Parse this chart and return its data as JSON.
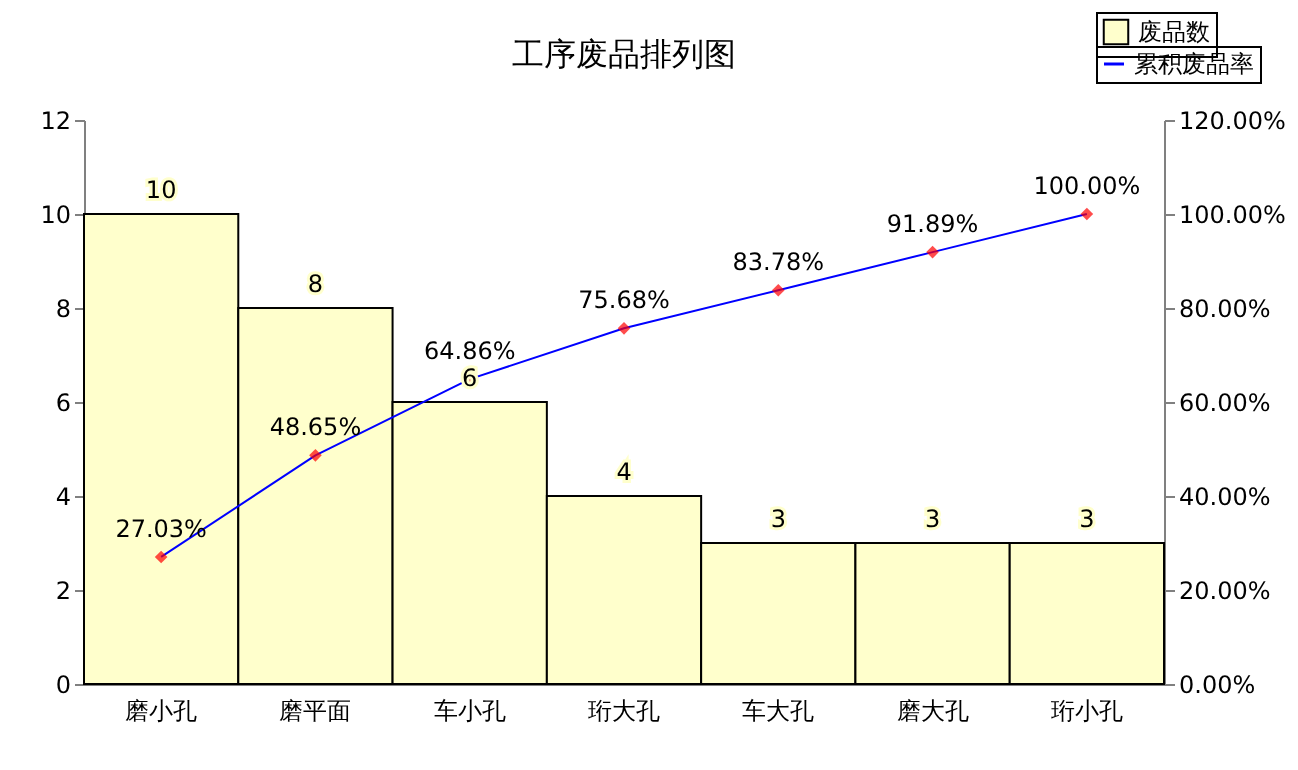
{
  "chart_data": {
    "type": "bar",
    "title": "工序废品排列图",
    "categories": [
      "磨小孔",
      "磨平面",
      "车小孔",
      "珩大孔",
      "车大孔",
      "磨大孔",
      "珩小孔"
    ],
    "series": [
      {
        "name": "废品数",
        "color": "#ffffcc",
        "values": [
          10,
          8,
          6,
          4,
          3,
          3,
          3
        ]
      },
      {
        "name": "累积废品率",
        "type": "line",
        "axis": "y2",
        "color": "#0000ff",
        "colors": [
          "#ff0000",
          "#ff0000",
          "#ff0000",
          "#ff0000",
          "#ff0000",
          "#ff0000",
          "#ff0000"
        ],
        "marker": "diamond",
        "values": [
          27.03,
          48.65,
          64.86,
          75.68,
          83.78,
          91.89,
          100.0
        ],
        "value_labels": [
          "27.03%",
          "48.65%",
          "64.86%",
          "75.68%",
          "83.78%",
          "91.89%",
          "100.00%"
        ]
      }
    ],
    "data_labels": true,
    "ylim": [
      0,
      12
    ],
    "yticks": [
      0,
      2,
      4,
      6,
      8,
      10,
      12
    ],
    "y2lim": [
      0,
      120
    ],
    "y2ticks": [
      {
        "value": 0,
        "label": "0.00%"
      },
      {
        "value": 20,
        "label": "20.00%"
      },
      {
        "value": 40,
        "label": "40.00%"
      },
      {
        "value": 60,
        "label": "60.00%"
      },
      {
        "value": 80,
        "label": "80.00%"
      },
      {
        "value": 100,
        "label": "100.00%"
      },
      {
        "value": 120,
        "label": "120.00%"
      }
    ],
    "grid": false,
    "legend": "top right"
  }
}
